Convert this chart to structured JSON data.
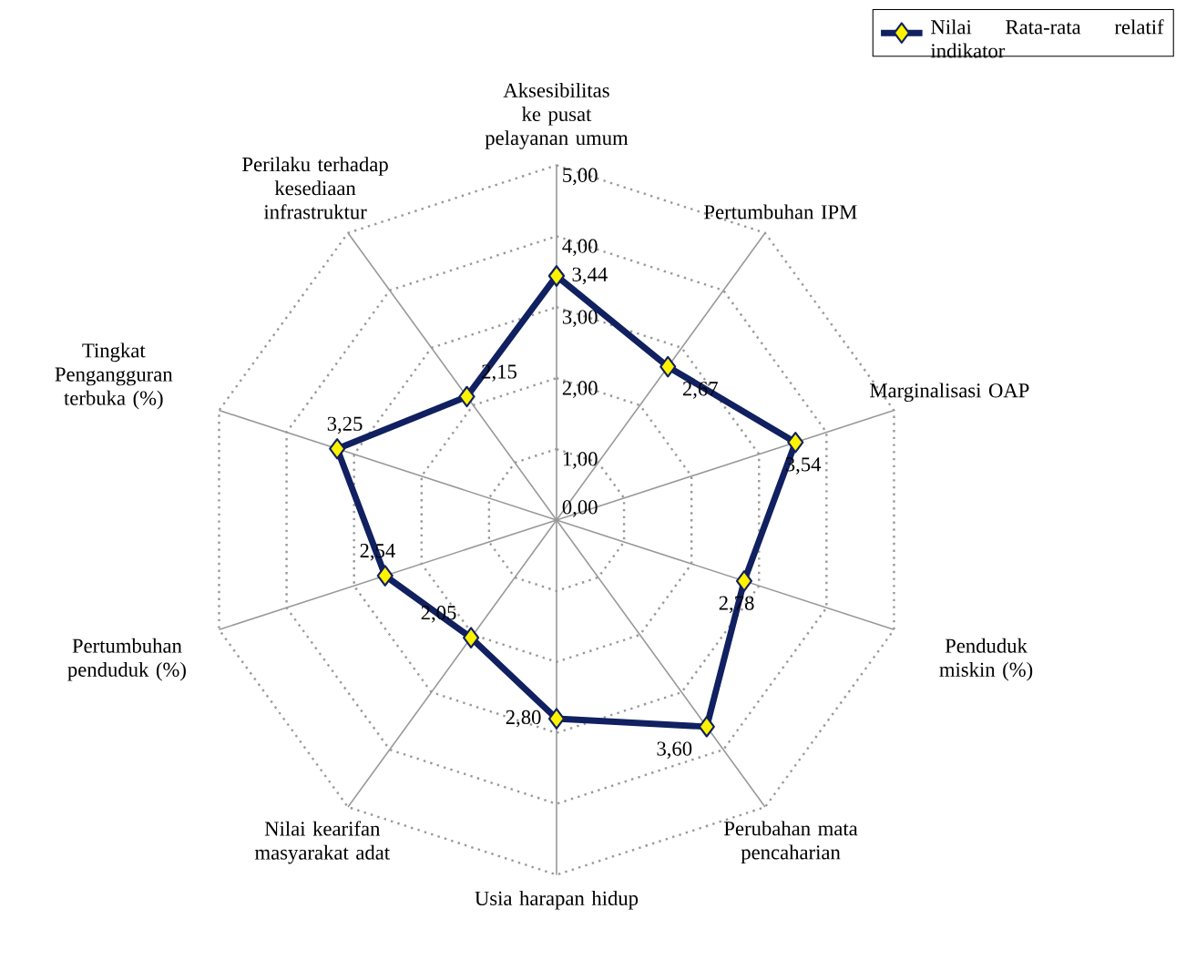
{
  "chart_data": {
    "type": "radar",
    "categories": [
      "Aksesibilitas ke pusat pelayanan umum",
      "Pertumbuhan IPM",
      "Marginalisasi OAP",
      "Penduduk miskin (%)",
      "Perubahan mata pencaharian",
      "Usia harapan hidup",
      "Nilai kearifan masyarakat adat",
      "Pertumbuhan penduduk (%)",
      "Tingkat Pengangguran terbuka (%)",
      "Perilaku terhadap kesediaan infrastruktur"
    ],
    "series": [
      {
        "name": "Nilai Rata-rata relatif indikator",
        "color": "#102060",
        "values": [
          3.44,
          2.67,
          3.54,
          2.78,
          3.6,
          2.8,
          2.05,
          2.54,
          3.25,
          2.15
        ],
        "value_labels": [
          "3,44",
          "2,67",
          "3,54",
          "2,78",
          "3,60",
          "2,80",
          "2,05",
          "2,54",
          "3,25",
          "2,15"
        ]
      }
    ],
    "ylim": [
      0,
      5
    ],
    "yticks": [
      {
        "value": 0,
        "label": "0,00"
      },
      {
        "value": 1,
        "label": "1,00"
      },
      {
        "value": 2,
        "label": "2,00"
      },
      {
        "value": 3,
        "label": "3,00"
      },
      {
        "value": 4,
        "label": "4,00"
      },
      {
        "value": 5,
        "label": "5,00"
      }
    ],
    "grid": true,
    "legend": "top right",
    "marker": "diamond",
    "line_style": "solid"
  }
}
